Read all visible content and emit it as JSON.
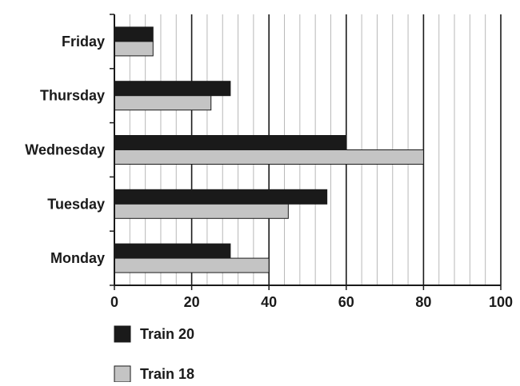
{
  "chart_data": {
    "type": "bar",
    "orientation": "horizontal",
    "title": "",
    "xlabel": "",
    "ylabel": "",
    "categories": [
      "Friday",
      "Thursday",
      "Wednesday",
      "Tuesday",
      "Monday"
    ],
    "series": [
      {
        "name": "Train 20",
        "values": [
          10,
          30,
          60,
          55,
          30
        ],
        "color": "#1a1a1a"
      },
      {
        "name": "Train 18",
        "values": [
          10,
          25,
          80,
          45,
          40
        ],
        "color": "#c4c4c4"
      }
    ],
    "xlim": [
      0,
      100
    ],
    "xticks": [
      0,
      20,
      40,
      60,
      80,
      100
    ],
    "minor_gridline_step": 4,
    "grid": true,
    "legend_position": "bottom-left"
  }
}
